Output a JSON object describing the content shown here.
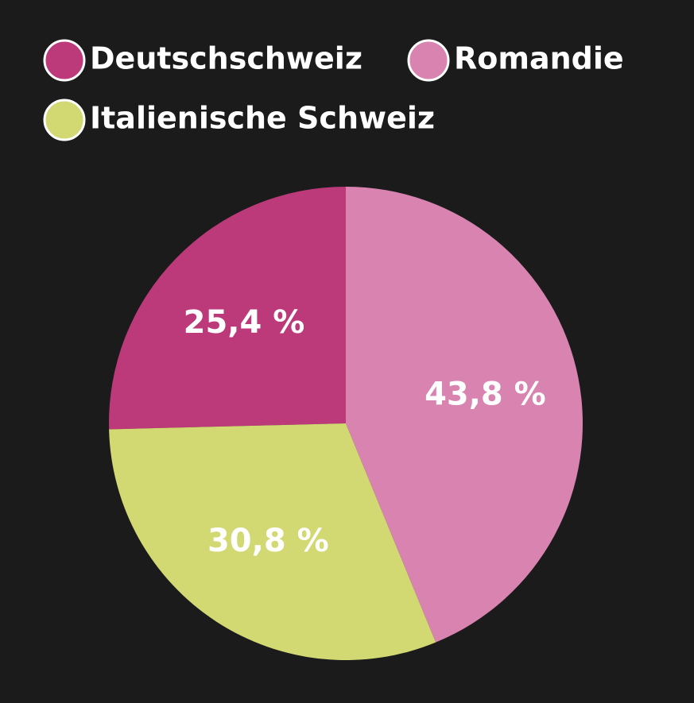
{
  "chart_data": {
    "type": "pie",
    "series": [
      {
        "name": "Deutschschweiz",
        "color": "#bd3a7a",
        "values": [
          25.4
        ],
        "value_labels": [
          "25,4 %"
        ]
      },
      {
        "name": "Romandie",
        "color": "#d883b0",
        "values": [
          43.8
        ],
        "value_labels": [
          "43,8 %"
        ]
      },
      {
        "name": "Italienische Schweiz",
        "color": "#d2d872",
        "values": [
          30.8
        ],
        "value_labels": [
          "30,8 %"
        ]
      }
    ],
    "legend": "top-left"
  }
}
